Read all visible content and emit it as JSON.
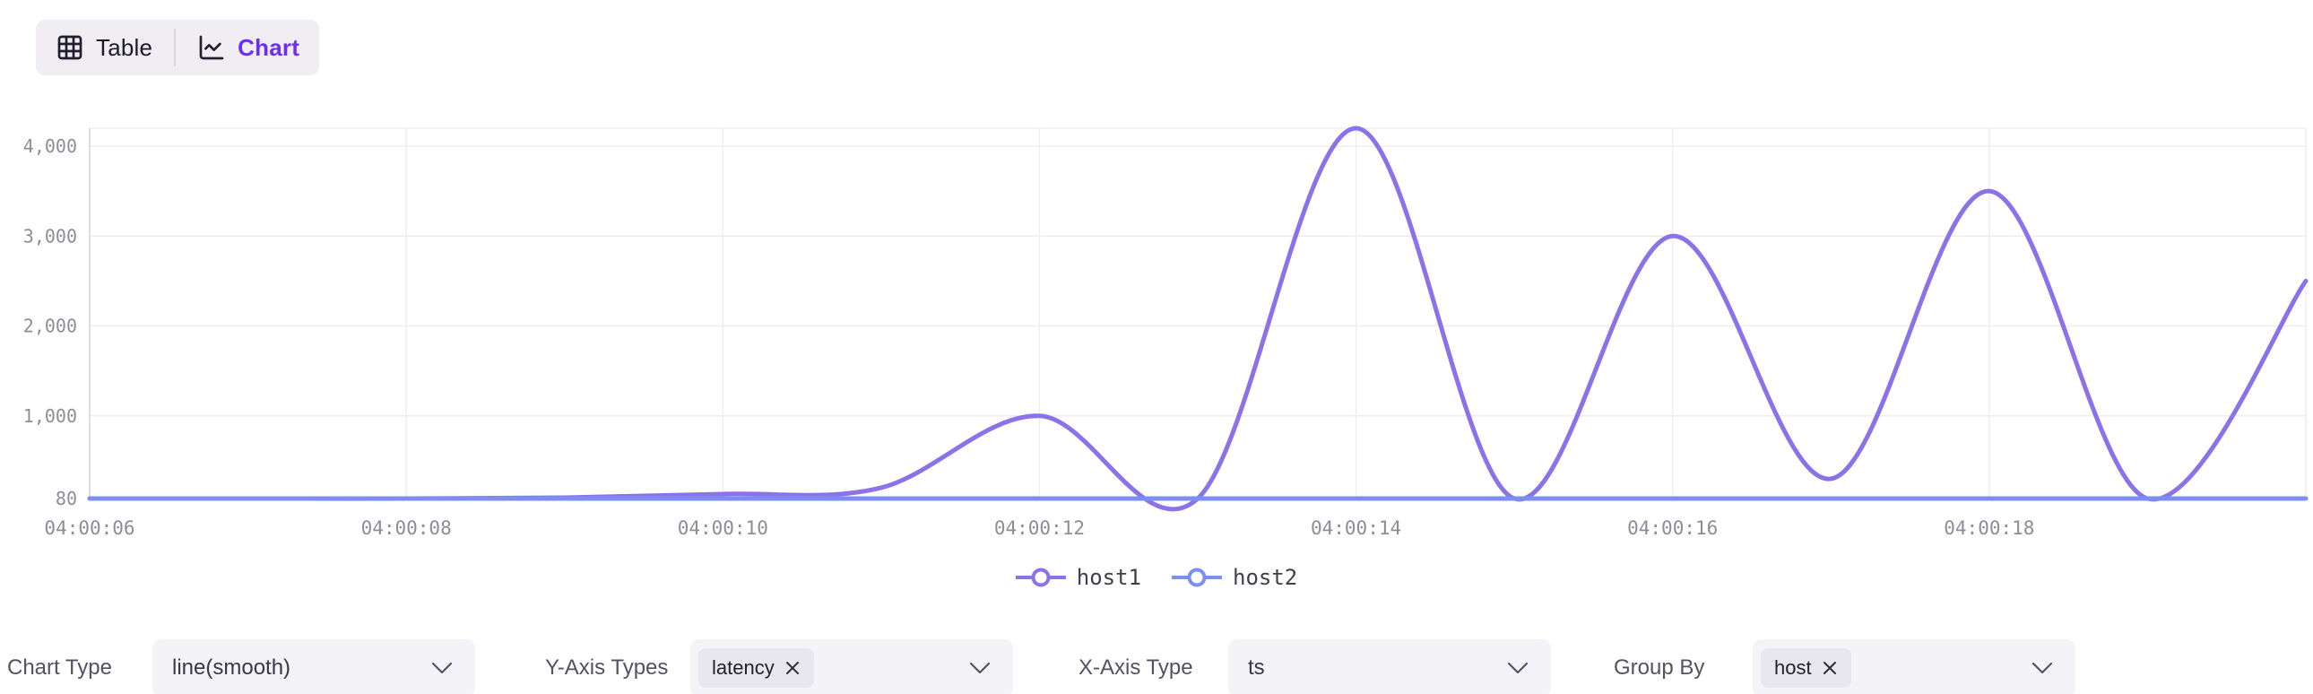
{
  "view_toggle": {
    "table_label": "Table",
    "chart_label": "Chart",
    "active": "Chart",
    "active_color": "#6d2ef2"
  },
  "chart_data": {
    "type": "line",
    "smooth": true,
    "title": "",
    "xlabel": "",
    "ylabel": "",
    "x": [
      "04:00:06",
      "04:00:07",
      "04:00:08",
      "04:00:09",
      "04:00:10",
      "04:00:11",
      "04:00:12",
      "04:00:13",
      "04:00:14",
      "04:00:15",
      "04:00:16",
      "04:00:17",
      "04:00:18",
      "04:00:19",
      "04:00:20"
    ],
    "series": [
      {
        "name": "host1",
        "color": "#8b72e9",
        "values": [
          80,
          80,
          80,
          90,
          130,
          200,
          1000,
          80,
          4200,
          80,
          3000,
          300,
          3500,
          80,
          2500
        ]
      },
      {
        "name": "host2",
        "color": "#7d8ef2",
        "values": [
          80,
          80,
          80,
          80,
          80,
          80,
          80,
          80,
          80,
          80,
          80,
          80,
          80,
          80,
          80
        ]
      }
    ],
    "x_tick_labels": [
      "04:00:06",
      "04:00:08",
      "04:00:10",
      "04:00:12",
      "04:00:14",
      "04:00:16",
      "04:00:18"
    ],
    "y_ticks": [
      {
        "value": 80,
        "label": "80"
      },
      {
        "value": 1000,
        "label": "1,000"
      },
      {
        "value": 2000,
        "label": "2,000"
      },
      {
        "value": 3000,
        "label": "3,000"
      },
      {
        "value": 4000,
        "label": "4,000"
      }
    ],
    "ylim": [
      80,
      4200
    ],
    "grid": true,
    "legend": {
      "position": "bottom",
      "items": [
        "host1",
        "host2"
      ]
    },
    "colors": {
      "grid_line": "#eeeef2",
      "axis_line": "#dddde4",
      "axis_label": "#8d8d98"
    }
  },
  "controls": [
    {
      "label": "Chart Type",
      "type": "select",
      "value": "line(smooth)"
    },
    {
      "label": "Y-Axis Types",
      "type": "multiselect",
      "tags": [
        "latency"
      ]
    },
    {
      "label": "X-Axis Type",
      "type": "select",
      "value": "ts"
    },
    {
      "label": "Group By",
      "type": "multiselect",
      "tags": [
        "host"
      ]
    }
  ]
}
